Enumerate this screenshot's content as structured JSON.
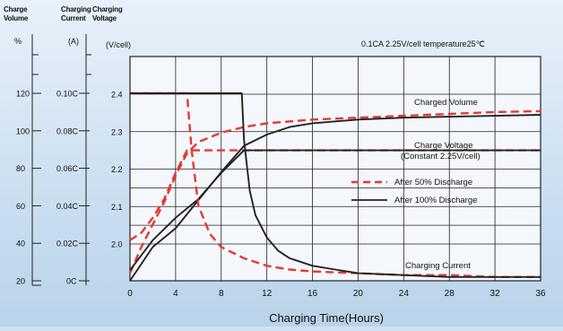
{
  "chart_data": {
    "type": "line",
    "xlabel": "Charging Time(Hours)",
    "x_ticks": [
      0,
      4,
      8,
      12,
      16,
      20,
      24,
      28,
      32,
      36
    ],
    "xlim": [
      0,
      36
    ],
    "condition_note": "0.1CA 2.25V/cell   temperature25℃",
    "axes": [
      {
        "id": "volume",
        "header": [
          "Charge",
          "Volume"
        ],
        "unit": "%",
        "ticks": [
          "20",
          "40",
          "60",
          "80",
          "100",
          "120"
        ],
        "ylim": [
          20,
          120
        ]
      },
      {
        "id": "current",
        "header": [
          "Charging",
          "Current"
        ],
        "unit": "(A)",
        "ticks": [
          "0C",
          "0.02C",
          "0.04C",
          "0.06C",
          "0.08C",
          "0.10C"
        ],
        "ylim": [
          0,
          0.1
        ]
      },
      {
        "id": "voltage",
        "header": [
          "Charging",
          "Voltage"
        ],
        "unit": "(V/cell)",
        "ticks": [
          "2.0",
          "2.1",
          "2.2",
          "2.3",
          "2.4"
        ],
        "ylim": [
          1.9,
          2.4
        ]
      }
    ],
    "grid": true,
    "annotations": [
      "Charged Volume",
      "Charge Voltage",
      "(Constant 2.25V/cell)",
      "Charging Current"
    ],
    "legend": [
      {
        "label": "After 50% Discharge",
        "style": "dashed",
        "color": "#e53935"
      },
      {
        "label": "After 100% Discharge",
        "style": "solid",
        "color": "#222222"
      }
    ],
    "series": [
      {
        "curve": "Charged Volume",
        "discharge": "50%",
        "axis": "volume",
        "x": [
          0,
          1,
          2,
          3,
          4,
          5,
          6,
          8,
          10,
          12,
          16,
          20,
          24,
          28,
          32,
          36
        ],
        "y": [
          24,
          38,
          50,
          62,
          76,
          88,
          94,
          99,
          102,
          104,
          106,
          107,
          108,
          109,
          110,
          110.5
        ]
      },
      {
        "curve": "Charged Volume",
        "discharge": "100%",
        "axis": "volume",
        "x": [
          0,
          2,
          4,
          6,
          8,
          10,
          12,
          14,
          16,
          20,
          24,
          28,
          32,
          36
        ],
        "y": [
          20,
          38,
          48,
          63,
          78,
          92,
          98,
          102,
          104,
          106,
          107,
          107.5,
          108,
          108.5
        ]
      },
      {
        "curve": "Charge Voltage",
        "discharge": "50%",
        "axis": "voltage",
        "x": [
          0,
          1,
          2,
          3,
          4,
          5,
          6,
          8,
          10,
          36
        ],
        "y": [
          2.01,
          2.03,
          2.07,
          2.12,
          2.19,
          2.25,
          2.25,
          2.25,
          2.25,
          2.25
        ]
      },
      {
        "curve": "Charge Voltage",
        "discharge": "100%",
        "axis": "voltage",
        "x": [
          0,
          2,
          4,
          6,
          8,
          10,
          36
        ],
        "y": [
          1.93,
          2.01,
          2.07,
          2.12,
          2.19,
          2.25,
          2.25
        ]
      },
      {
        "curve": "Charging Current",
        "discharge": "50%",
        "axis": "current",
        "x": [
          0,
          4.9,
          5.0,
          5.4,
          6,
          7,
          8,
          10,
          12,
          14,
          16,
          20,
          24,
          28,
          32,
          36
        ],
        "y": [
          0.1,
          0.1,
          0.1,
          0.07,
          0.04,
          0.025,
          0.018,
          0.012,
          0.008,
          0.006,
          0.005,
          0.004,
          0.003,
          0.003,
          0.002,
          0.002
        ]
      },
      {
        "curve": "Charging Current",
        "discharge": "100%",
        "axis": "current",
        "x": [
          0,
          9.7,
          9.8,
          10,
          10.5,
          11,
          12,
          13,
          14,
          16,
          18,
          20,
          24,
          28,
          32,
          36
        ],
        "y": [
          0.1,
          0.1,
          0.1,
          0.075,
          0.048,
          0.035,
          0.023,
          0.016,
          0.012,
          0.008,
          0.006,
          0.004,
          0.003,
          0.002,
          0.002,
          0.002
        ]
      }
    ]
  }
}
